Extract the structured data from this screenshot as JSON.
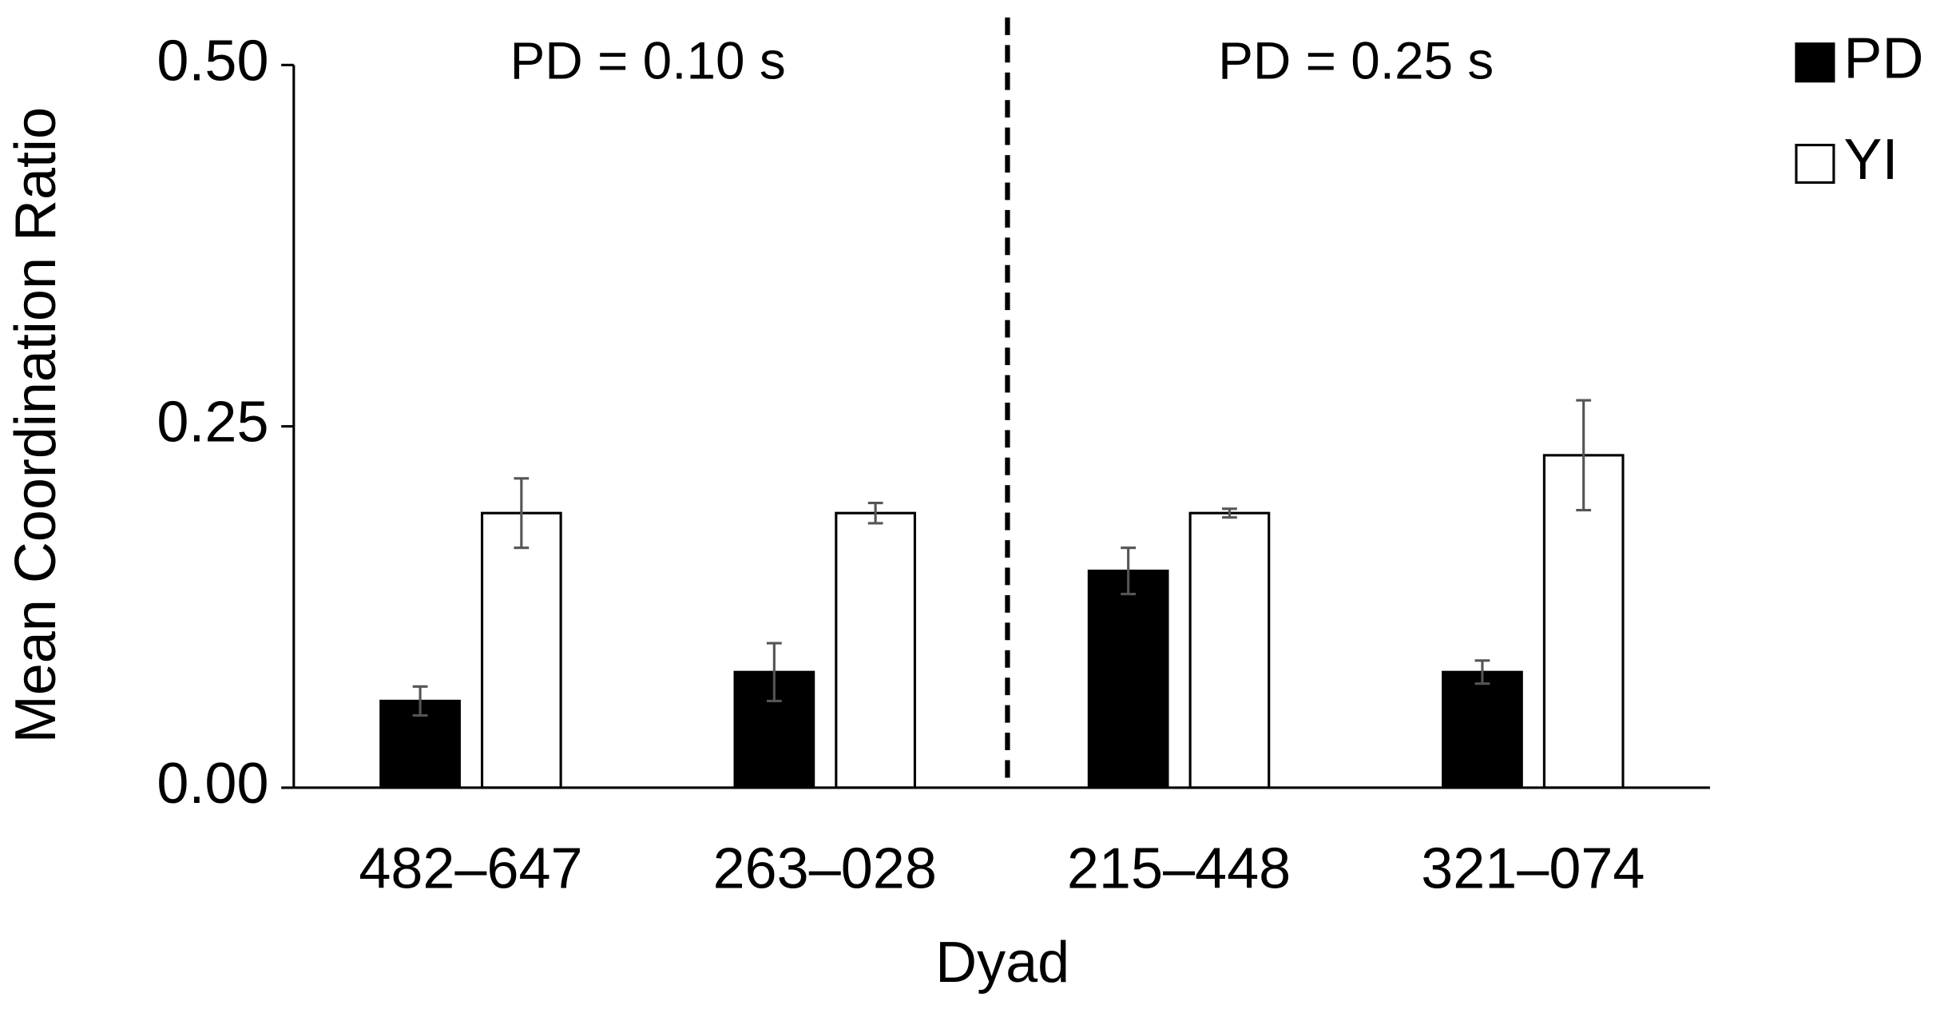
{
  "chart_data": {
    "type": "bar",
    "x_label": "Dyad",
    "y_label": "Mean Coordination Ratio",
    "annotations": [
      "PD = 0.10 s",
      "PD = 0.25 s"
    ],
    "categories": [
      "482–647",
      "263–028",
      "215–448",
      "321–074"
    ],
    "series": [
      {
        "name": "PD",
        "color": "#000000",
        "values": [
          0.06,
          0.08,
          0.15,
          0.08
        ],
        "errors": [
          0.01,
          0.02,
          0.016,
          0.008
        ]
      },
      {
        "name": "YI",
        "color": "#ffffff",
        "values": [
          0.19,
          0.19,
          0.19,
          0.23
        ],
        "errors": [
          0.024,
          0.007,
          0.003,
          0.038
        ]
      }
    ],
    "ylim": [
      0,
      0.5
    ],
    "yticks": [
      {
        "value": 0,
        "label": "0.00"
      },
      {
        "value": 0.25,
        "label": "0.25"
      },
      {
        "value": 0.5,
        "label": "0.50"
      }
    ],
    "legend": "top-right"
  }
}
